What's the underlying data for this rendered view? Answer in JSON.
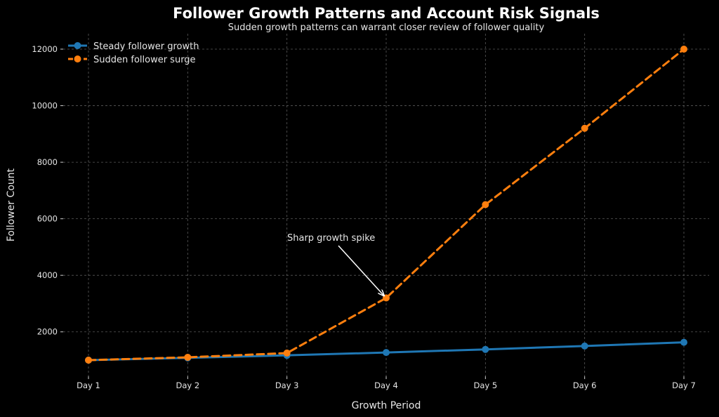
{
  "chart_data": {
    "type": "line",
    "title": "Follower Growth Patterns and Account Risk Signals",
    "subtitle": "Sudden growth patterns can warrant closer review of follower quality",
    "xlabel": "Growth Period",
    "ylabel": "Follower Count",
    "categories": [
      "Day 1",
      "Day 2",
      "Day 3",
      "Day 4",
      "Day 5",
      "Day 6",
      "Day 7"
    ],
    "yticks": [
      2000,
      4000,
      6000,
      8000,
      10000,
      12000
    ],
    "ylim": [
      500,
      12500
    ],
    "grid": true,
    "legend_position": "top-left",
    "series": [
      {
        "name": "Steady follower growth",
        "values": [
          1000,
          1080,
          1170,
          1270,
          1380,
          1500,
          1630
        ],
        "color": "#1f77b4",
        "line_style": "solid"
      },
      {
        "name": "Sudden follower surge",
        "values": [
          1000,
          1100,
          1250,
          3200,
          6500,
          9200,
          12000
        ],
        "color": "#ff7f0e",
        "line_style": "dashed"
      }
    ],
    "annotations": [
      {
        "text": "Sharp growth spike",
        "target_category": "Day 4",
        "target_value": 3200
      }
    ]
  }
}
